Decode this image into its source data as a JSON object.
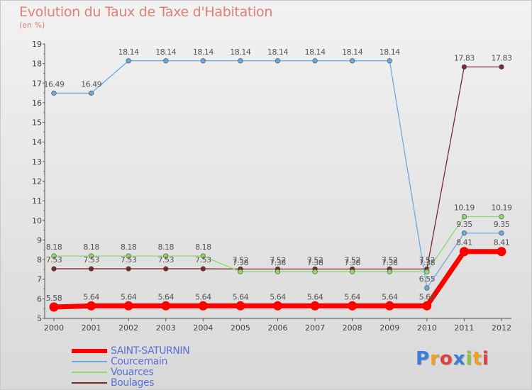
{
  "chart_data": {
    "type": "line",
    "title": "Evolution du Taux de Taxe d'Habitation",
    "subtitle": "(en %)",
    "x": [
      2000,
      2001,
      2002,
      2003,
      2004,
      2005,
      2006,
      2007,
      2008,
      2009,
      2010,
      2011,
      2012
    ],
    "ylim": [
      5,
      19
    ],
    "yticks": [
      5,
      6,
      7,
      8,
      9,
      10,
      11,
      12,
      13,
      14,
      15,
      16,
      17,
      18,
      19
    ],
    "grid": false,
    "legend_position": "bottom-left",
    "series": [
      {
        "name": "SAINT-SATURNIN",
        "color": "#ff0000",
        "values": [
          5.58,
          5.64,
          5.64,
          5.64,
          5.64,
          5.64,
          5.64,
          5.64,
          5.64,
          5.64,
          5.64,
          8.41,
          8.41
        ],
        "labels": [
          "5.58",
          "5.64",
          "5.64",
          "5.64",
          "5.64",
          "5.64",
          "5.64",
          "5.64",
          "5.64",
          "5.64",
          "5.64",
          "8.41",
          "8.41"
        ]
      },
      {
        "name": "Courcemain",
        "color": "#6fa8dc",
        "values": [
          16.49,
          16.49,
          18.14,
          18.14,
          18.14,
          18.14,
          18.14,
          18.14,
          18.14,
          18.14,
          6.55,
          9.35,
          9.35
        ],
        "labels": [
          "16.49",
          "16.49",
          "18.14",
          "18.14",
          "18.14",
          "18.14",
          "18.14",
          "18.14",
          "18.14",
          "18.14",
          "6.55",
          "9.35",
          "9.35"
        ]
      },
      {
        "name": "Vouarces",
        "color": "#8fd86a",
        "values": [
          8.18,
          8.18,
          8.18,
          8.18,
          8.18,
          7.38,
          7.38,
          7.38,
          7.38,
          7.38,
          7.38,
          10.19,
          10.19
        ],
        "labels": [
          "8.18",
          "8.18",
          "8.18",
          "8.18",
          "8.18",
          "7.38",
          "7.38",
          "7.38",
          "7.38",
          "7.38",
          "7.38",
          "10.19",
          "10.19"
        ]
      },
      {
        "name": "Boulages",
        "color": "#7a2a2a",
        "values": [
          7.53,
          7.53,
          7.53,
          7.53,
          7.53,
          7.52,
          7.52,
          7.52,
          7.52,
          7.52,
          7.52,
          17.83,
          17.83
        ],
        "labels": [
          "7.53",
          "7.53",
          "7.53",
          "7.53",
          "7.53",
          "7.52",
          "7.52",
          "7.52",
          "7.52",
          "7.52",
          "7.52",
          "17.83",
          "17.83"
        ]
      }
    ]
  },
  "brand": {
    "letters": [
      "P",
      "r",
      "o",
      "x",
      "i",
      "t",
      "i"
    ],
    "colors": [
      "#3b7dd8",
      "#f0a020",
      "#e04040",
      "#3b7dd8",
      "#8bc34a",
      "#f0a020",
      "#e04040"
    ]
  }
}
